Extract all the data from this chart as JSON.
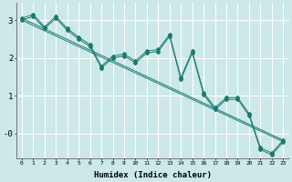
{
  "xlabel": "Humidex (Indice chaleur)",
  "bg_color": "#cce8e8",
  "grid_color": "#ffffff",
  "line_color": "#1a7a6e",
  "xlim": [
    -0.5,
    23.5
  ],
  "ylim": [
    -0.65,
    3.45
  ],
  "xticks": [
    0,
    1,
    2,
    3,
    4,
    5,
    6,
    7,
    8,
    9,
    10,
    11,
    12,
    13,
    14,
    15,
    16,
    17,
    18,
    19,
    20,
    21,
    22,
    23
  ],
  "yticks": [
    0,
    1,
    2,
    3
  ],
  "ytick_labels": [
    "-0",
    "1",
    "2",
    "3"
  ],
  "series": [
    {
      "x": [
        0,
        23
      ],
      "y": [
        3.05,
        -0.18
      ]
    },
    {
      "x": [
        0,
        23
      ],
      "y": [
        3.0,
        -0.22
      ]
    },
    {
      "x": [
        0,
        1,
        2,
        3,
        4,
        5,
        6,
        7,
        8,
        9,
        10,
        11,
        12,
        13,
        14,
        15,
        16,
        17,
        18,
        19,
        20,
        21,
        22,
        23
      ],
      "y": [
        3.05,
        3.15,
        2.82,
        3.1,
        2.78,
        2.55,
        2.35,
        1.78,
        2.05,
        2.1,
        1.92,
        2.18,
        2.22,
        2.62,
        1.48,
        2.18,
        1.08,
        0.68,
        0.95,
        0.95,
        0.52,
        -0.38,
        -0.52,
        -0.18
      ]
    },
    {
      "x": [
        0,
        1,
        2,
        3,
        4,
        5,
        6,
        7,
        8,
        9,
        10,
        11,
        12,
        13,
        14,
        15,
        16,
        17,
        18,
        19,
        20,
        21,
        22,
        23
      ],
      "y": [
        3.0,
        3.1,
        2.78,
        3.05,
        2.73,
        2.5,
        2.3,
        1.73,
        2.0,
        2.05,
        1.87,
        2.13,
        2.17,
        2.57,
        1.43,
        2.13,
        1.03,
        0.63,
        0.9,
        0.9,
        0.47,
        -0.43,
        -0.57,
        -0.23
      ]
    }
  ]
}
